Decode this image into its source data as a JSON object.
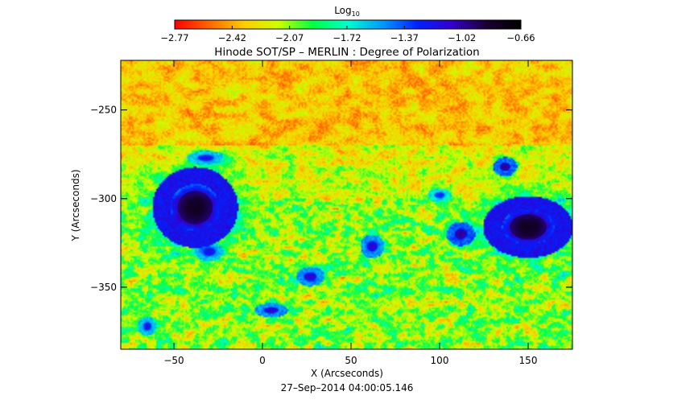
{
  "chart_data": {
    "type": "heatmap",
    "title": "Hinode SOT/SP – MERLIN : Degree of Polarization",
    "xlabel": "X (Arcseconds)",
    "ylabel": "Y (Arcseconds)",
    "timestamp": "27–Sep–2014 04:00:05.146",
    "xlim": [
      -80,
      175
    ],
    "ylim": [
      -385,
      -222
    ],
    "x_ticks": [
      -50,
      0,
      50,
      100,
      150
    ],
    "y_ticks": [
      -250,
      -300,
      -350
    ],
    "x_tick_labels": [
      "−50",
      "0",
      "50",
      "100",
      "150"
    ],
    "y_tick_labels": [
      "−250",
      "−300",
      "−350"
    ],
    "grid": false,
    "colorbar": {
      "label_base": "Log",
      "label_sub": "10",
      "placement": "top",
      "colormap": "rainbow (red → orange → yellow → green → cyan → blue → violet)",
      "range": [
        -2.77,
        -0.66
      ],
      "ticks": [
        -2.77,
        -2.42,
        -2.07,
        -1.72,
        -1.37,
        -1.02,
        -0.66
      ],
      "tick_labels": [
        "−2.77",
        "−2.42",
        "−2.07",
        "−1.72",
        "−1.37",
        "−1.02",
        "−0.66"
      ],
      "colors": [
        "#ff0000",
        "#ff6600",
        "#ffcc00",
        "#ccff00",
        "#00ff44",
        "#00ffcc",
        "#0099ff",
        "#0022ff",
        "#3300cc",
        "#1a0033",
        "#000000"
      ]
    },
    "features": [
      {
        "kind": "sunspot",
        "x": -38,
        "y": -305,
        "rx": 18,
        "ry": 17,
        "value": -0.8
      },
      {
        "kind": "sunspot",
        "x": 150,
        "y": -316,
        "rx": 19,
        "ry": 13,
        "value": -0.8
      },
      {
        "kind": "pore",
        "x": 137,
        "y": -282,
        "rx": 5,
        "ry": 4,
        "value": -1.0
      },
      {
        "kind": "pore",
        "x": 112,
        "y": -320,
        "rx": 6,
        "ry": 5,
        "value": -1.0
      },
      {
        "kind": "pore",
        "x": 62,
        "y": -327,
        "rx": 5,
        "ry": 5,
        "value": -1.1
      },
      {
        "kind": "pore",
        "x": 27,
        "y": -344,
        "rx": 6,
        "ry": 4,
        "value": -1.1
      },
      {
        "kind": "pore",
        "x": 5,
        "y": -363,
        "rx": 7,
        "ry": 3,
        "value": -1.1
      },
      {
        "kind": "pore",
        "x": -30,
        "y": -330,
        "rx": 6,
        "ry": 4,
        "value": -1.2
      },
      {
        "kind": "pore",
        "x": -32,
        "y": -277,
        "rx": 8,
        "ry": 3,
        "value": -1.2
      },
      {
        "kind": "pore",
        "x": -65,
        "y": -372,
        "rx": 4,
        "ry": 4,
        "value": -1.2
      },
      {
        "kind": "pore",
        "x": 100,
        "y": -298,
        "rx": 5,
        "ry": 3,
        "value": -1.3
      }
    ]
  }
}
